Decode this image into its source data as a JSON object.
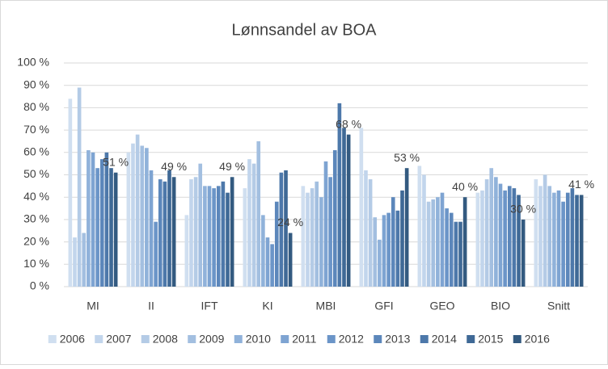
{
  "chart_data": {
    "type": "bar",
    "title": "Lønnsandel av BOA",
    "categories": [
      "MI",
      "II",
      "IFT",
      "KI",
      "MBI",
      "GFI",
      "GEO",
      "BIO",
      "Snitt"
    ],
    "ylim": [
      0,
      100
    ],
    "yticks": [
      {
        "value": 0,
        "label": "0 %"
      },
      {
        "value": 10,
        "label": "10 %"
      },
      {
        "value": 20,
        "label": "20 %"
      },
      {
        "value": 30,
        "label": "30 %"
      },
      {
        "value": 40,
        "label": "40 %"
      },
      {
        "value": 50,
        "label": "50 %"
      },
      {
        "value": 60,
        "label": "60 %"
      },
      {
        "value": 70,
        "label": "70 %"
      },
      {
        "value": 80,
        "label": "80 %"
      },
      {
        "value": 90,
        "label": "90 %"
      },
      {
        "value": 100,
        "label": "100 %"
      }
    ],
    "grid": true,
    "legend": "bottom",
    "series": [
      {
        "name": "2006",
        "color": "#d0dff0",
        "values": [
          84,
          60,
          32,
          44,
          45,
          71,
          54,
          42,
          48
        ]
      },
      {
        "name": "2007",
        "color": "#c2d5ec",
        "values": [
          22,
          64,
          48,
          57,
          42,
          52,
          50,
          43,
          45
        ]
      },
      {
        "name": "2008",
        "color": "#b4cbe6",
        "values": [
          89,
          68,
          49,
          55,
          44,
          48,
          38,
          48,
          50
        ]
      },
      {
        "name": "2009",
        "color": "#a3bfe0",
        "values": [
          24,
          63,
          55,
          65,
          47,
          31,
          39,
          53,
          45
        ]
      },
      {
        "name": "2010",
        "color": "#90b2da",
        "values": [
          61,
          62,
          45,
          32,
          40,
          21,
          40,
          49,
          42
        ]
      },
      {
        "name": "2011",
        "color": "#7ea4d2",
        "values": [
          60,
          52,
          45,
          22,
          56,
          32,
          42,
          46,
          43
        ]
      },
      {
        "name": "2012",
        "color": "#6b95c8",
        "values": [
          53,
          29,
          44,
          19,
          49,
          33,
          35,
          43,
          38
        ]
      },
      {
        "name": "2013",
        "color": "#5c87bb",
        "values": [
          57,
          48,
          45,
          38,
          61,
          40,
          33,
          45,
          42
        ]
      },
      {
        "name": "2014",
        "color": "#4d78aa",
        "values": [
          60,
          47,
          47,
          51,
          82,
          34,
          29,
          44,
          44
        ]
      },
      {
        "name": "2015",
        "color": "#3f6996",
        "values": [
          53,
          52,
          42,
          52,
          71,
          43,
          29,
          41,
          41
        ]
      },
      {
        "name": "2016",
        "color": "#335a80",
        "values": [
          51,
          49,
          49,
          24,
          68,
          53,
          40,
          30,
          41
        ],
        "value_labels": [
          "51 %",
          "49 %",
          "49 %",
          "24 %",
          "68 %",
          "53 %",
          "40 %",
          "30 %",
          "41 %"
        ]
      }
    ]
  }
}
